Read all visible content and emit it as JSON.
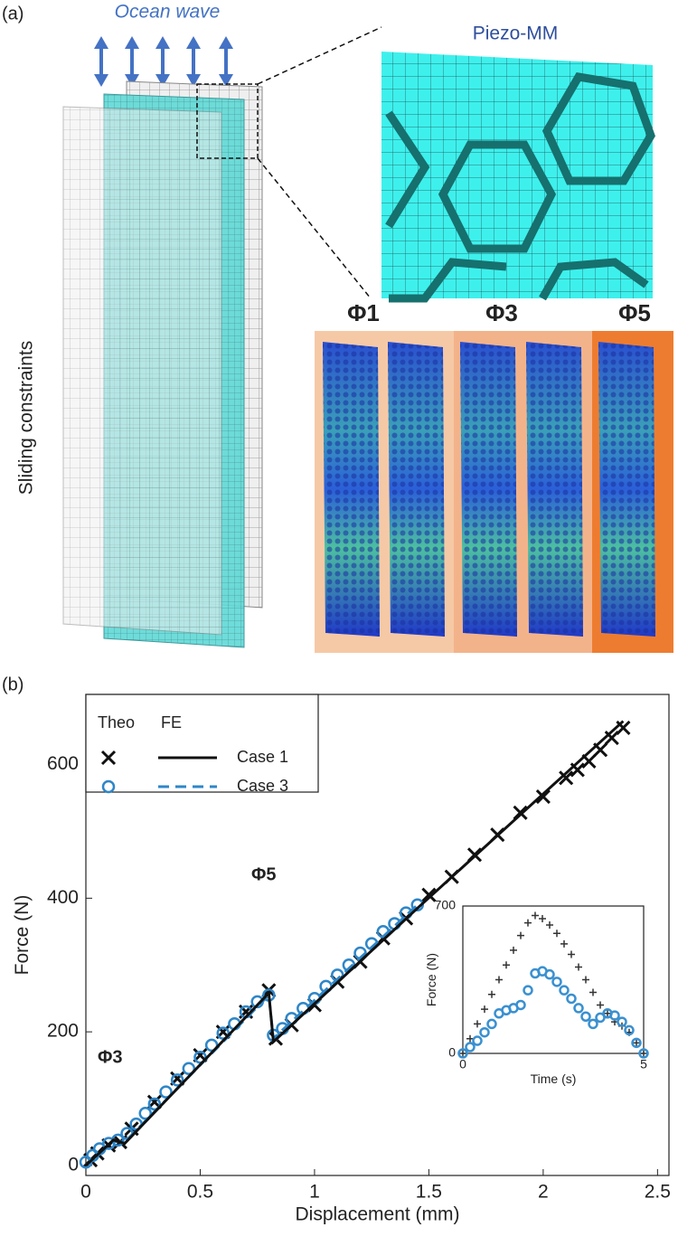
{
  "panel_a": {
    "label": "(a)",
    "wave": "Ocean wave",
    "zoom": "Piezo-MM",
    "modes": [
      "Φ1",
      "Φ3",
      "Φ5"
    ],
    "side": "Sliding constraints"
  },
  "panel_b": {
    "label": "(b)"
  },
  "chart_data": [
    {
      "type": "scatter",
      "xlabel": "Displacement (mm)",
      "ylabel": "Force (N)",
      "xlim": [
        0,
        2.55
      ],
      "xticks": [
        0,
        0.5,
        1,
        1.5,
        2,
        2.5
      ],
      "ylim": [
        -15,
        705
      ],
      "yticks": [
        0,
        200,
        400,
        600
      ],
      "legend_headers": [
        "Theo",
        "FE"
      ],
      "annotations": [
        "Φ3",
        "Φ5"
      ],
      "series": [
        {
          "name": "Case 1",
          "color": "#111111",
          "theo_marker": "x",
          "fe_dash": false,
          "theo_x": [
            0.02,
            0.05,
            0.1,
            0.15,
            0.2,
            0.3,
            0.4,
            0.5,
            0.6,
            0.7,
            0.8,
            0.83,
            0.9,
            1.0,
            1.1,
            1.2,
            1.3,
            1.4,
            1.5,
            1.6,
            1.7,
            1.8,
            1.9,
            2.0,
            2.1,
            2.15,
            2.2,
            2.25,
            2.3,
            2.35
          ],
          "theo_values": [
            8,
            18,
            30,
            35,
            55,
            95,
            130,
            165,
            200,
            230,
            262,
            190,
            210,
            240,
            275,
            305,
            340,
            370,
            405,
            432,
            465,
            495,
            528,
            552,
            580,
            592,
            605,
            622,
            640,
            655
          ],
          "fe_x": [
            0,
            0.12,
            0.17,
            0.8,
            0.82,
            1.45,
            2.35
          ],
          "fe_values": [
            0,
            38,
            33,
            258,
            185,
            385,
            665
          ]
        },
        {
          "name": "Case 3",
          "color": "#2e86c8",
          "theo_marker": "o",
          "fe_dash": true,
          "theo_x": [
            0,
            0.03,
            0.06,
            0.1,
            0.14,
            0.18,
            0.22,
            0.26,
            0.3,
            0.35,
            0.4,
            0.45,
            0.5,
            0.55,
            0.6,
            0.65,
            0.7,
            0.75,
            0.8,
            0.82,
            0.86,
            0.9,
            0.95,
            1.0,
            1.05,
            1.1,
            1.15,
            1.2,
            1.25,
            1.3,
            1.35,
            1.4,
            1.45
          ],
          "theo_values": [
            5,
            15,
            25,
            33,
            38,
            48,
            62,
            78,
            92,
            110,
            128,
            145,
            162,
            180,
            198,
            212,
            230,
            245,
            255,
            195,
            205,
            220,
            235,
            250,
            268,
            285,
            300,
            318,
            332,
            350,
            362,
            378,
            390
          ],
          "fe_x": [
            0,
            0.12,
            0.17,
            0.8,
            0.82,
            1.45
          ],
          "fe_values": [
            0,
            36,
            35,
            255,
            190,
            390
          ]
        }
      ]
    },
    {
      "type": "scatter",
      "xlabel": "Time (s)",
      "ylabel": "Force (N)",
      "xlim": [
        0,
        5
      ],
      "xticks": [
        0,
        5
      ],
      "ylim": [
        0,
        700
      ],
      "yticks": [
        0,
        700
      ],
      "x": [
        0,
        0.2,
        0.4,
        0.6,
        0.8,
        1.0,
        1.2,
        1.4,
        1.6,
        1.8,
        2.0,
        2.2,
        2.4,
        2.6,
        2.8,
        3.0,
        3.2,
        3.4,
        3.6,
        3.8,
        4.0,
        4.2,
        4.4,
        4.6,
        4.8,
        5.0
      ],
      "series": [
        {
          "color": "#333333",
          "marker": "+",
          "values": [
            0,
            70,
            140,
            210,
            280,
            350,
            420,
            490,
            560,
            620,
            655,
            640,
            610,
            570,
            520,
            470,
            410,
            350,
            290,
            230,
            190,
            150,
            130,
            100,
            50,
            0
          ]
        },
        {
          "color": "#3a90d0",
          "marker": "o",
          "values": [
            0,
            30,
            60,
            100,
            140,
            190,
            205,
            215,
            230,
            300,
            380,
            390,
            375,
            340,
            300,
            260,
            215,
            175,
            140,
            170,
            190,
            180,
            150,
            110,
            50,
            0
          ]
        }
      ]
    }
  ]
}
